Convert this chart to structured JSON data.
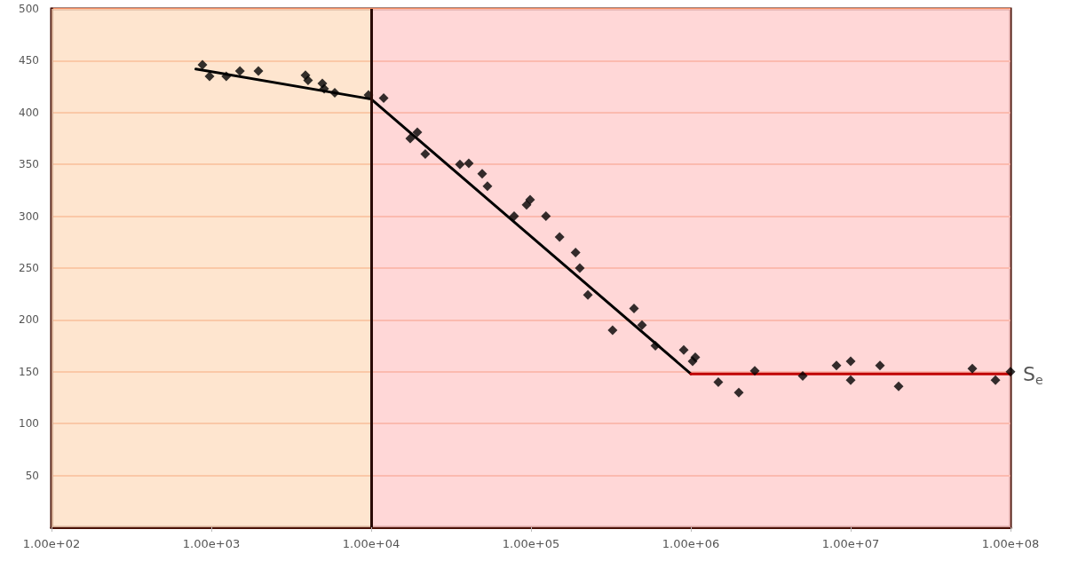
{
  "chart_data": {
    "type": "scatter",
    "log": "x",
    "grid": "y",
    "legend": false,
    "marker": "diamond",
    "line_style": "solid",
    "xlim": [
      100,
      100000000
    ],
    "xticks": [
      {
        "value": 100,
        "label": "1.00e+02"
      },
      {
        "value": 1000,
        "label": "1.00e+03"
      },
      {
        "value": 10000,
        "label": "1.00e+04"
      },
      {
        "value": 100000,
        "label": "1.00e+05"
      },
      {
        "value": 1000000,
        "label": "1.00e+06"
      },
      {
        "value": 10000000,
        "label": "1.00e+07"
      },
      {
        "value": 100000000,
        "label": "1.00e+08"
      }
    ],
    "ylim": [
      0,
      500
    ],
    "yticks": [
      {
        "value": 0,
        "label": null
      },
      50,
      100,
      150,
      200,
      250,
      300,
      350,
      400,
      450,
      500
    ],
    "series": [
      {
        "color": "#000000",
        "x": [
          880,
          975,
          1240,
          1510,
          1970,
          3880,
          4030,
          4950,
          5080,
          5920,
          9620,
          11970,
          17550,
          19450,
          21800,
          35900,
          40800,
          49500,
          53400,
          78400,
          93800,
          98700,
          124000,
          151000,
          190000,
          202000,
          227000,
          324000,
          441000,
          495000,
          600000,
          903000,
          1066000,
          1026000,
          1486000,
          1995000,
          2512000,
          5012000,
          8150000,
          10000000,
          10000000,
          15250000,
          19950000,
          57700000,
          80500000,
          100000000
        ],
        "values": [
          446,
          435,
          435,
          440,
          440,
          436,
          431,
          428,
          423,
          419,
          417,
          414,
          375,
          381,
          360,
          350,
          351,
          341,
          329,
          300,
          311,
          316,
          300,
          280,
          265,
          250,
          224,
          190,
          211,
          195,
          175,
          171,
          164,
          160,
          140,
          130,
          151,
          146,
          156,
          160,
          142,
          156,
          136,
          153,
          142,
          150
        ]
      },
      {
        "type": "line",
        "marker": "none",
        "color": "#000000",
        "x": [
          800,
          10000,
          1000000
        ],
        "values": [
          442,
          413,
          148
        ]
      },
      {
        "type": "line",
        "marker": "none",
        "name": "S$_{e}$",
        "color": "#c00000",
        "x": [
          1000000,
          100000000
        ],
        "values": [
          148,
          148
        ]
      }
    ],
    "bands": [
      {
        "axis": "x",
        "from": 100,
        "to": 10000,
        "color": "#fddcbf"
      },
      {
        "axis": "x",
        "from": 10000,
        "to": 100000000,
        "color": "#ffcaca"
      }
    ],
    "ref_lines": [
      {
        "axis": "x",
        "value": 10000,
        "color": "#2a0a05"
      }
    ]
  }
}
